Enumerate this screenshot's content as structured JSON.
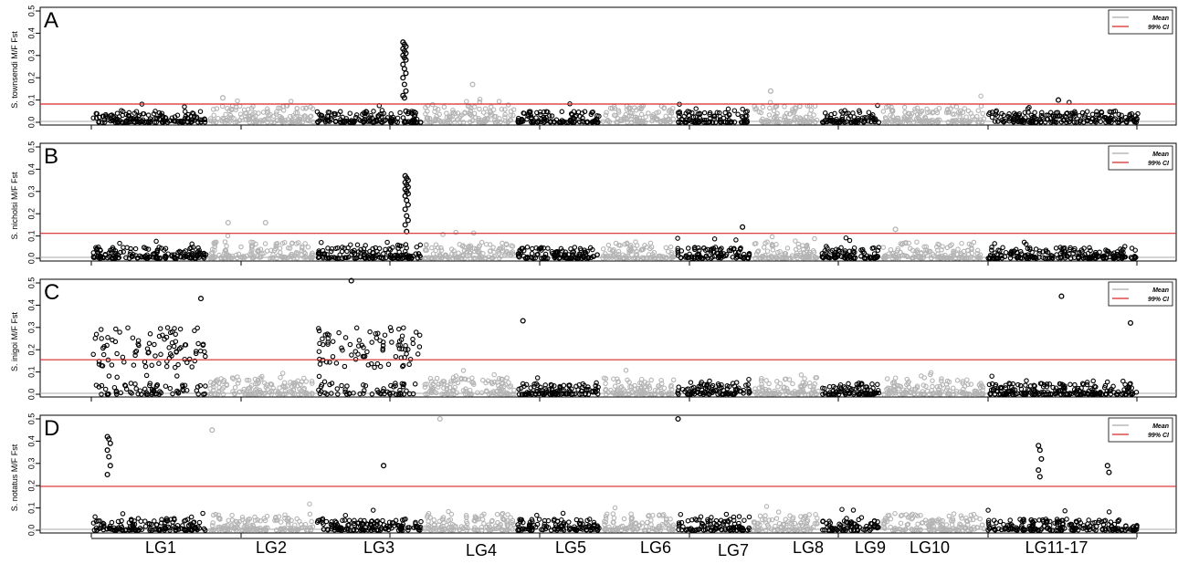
{
  "chart_data": {
    "type": "scatter",
    "x_axis": {
      "linkage_groups": [
        "LG1",
        "LG2",
        "LG3",
        "LG4",
        "LG5",
        "LG6",
        "LG7",
        "LG8",
        "LG9",
        "LG10",
        "LG11-17"
      ]
    },
    "y_ticks": [
      "0.0",
      "0.1",
      "0.2",
      "0.3",
      "0.4",
      "0.5"
    ],
    "ylim": [
      0,
      0.5
    ],
    "legend_entries": [
      "Mean",
      "99% CI"
    ],
    "colors": {
      "alternate_group_a": "#000000",
      "alternate_group_b": "#b4b4b4",
      "mean_line": "#aaaaaa",
      "ci_line": "#d62728"
    },
    "panels": [
      {
        "label": "A",
        "ylabel": "S. townsendi M/F Fst",
        "mean": 0.004,
        "ci99": 0.082,
        "highlights": [
          {
            "group": "LG3",
            "position": 0.83,
            "values": [
              0.36,
              0.35,
              0.34,
              0.33,
              0.32,
              0.31,
              0.3,
              0.29,
              0.28,
              0.26,
              0.24,
              0.22,
              0.2,
              0.17,
              0.14,
              0.12,
              0.11,
              0.05
            ]
          },
          {
            "group": "LG4",
            "position": 0.55,
            "values": [
              0.17
            ]
          },
          {
            "group": "LG8",
            "position": 0.3,
            "values": [
              0.14
            ]
          },
          {
            "group": "LG2",
            "position": 0.15,
            "values": [
              0.11
            ]
          },
          {
            "group": "LG11-17",
            "position": 0.48,
            "values": [
              0.1
            ]
          }
        ]
      },
      {
        "label": "B",
        "ylabel": "S. nicholsi M/F Fst",
        "mean": 0.004,
        "ci99": 0.112,
        "highlights": [
          {
            "group": "LG3",
            "position": 0.85,
            "values": [
              0.37,
              0.36,
              0.35,
              0.34,
              0.33,
              0.32,
              0.31,
              0.3,
              0.29,
              0.28,
              0.26,
              0.24,
              0.22,
              0.19,
              0.17,
              0.15,
              0.12
            ]
          },
          {
            "group": "LG2",
            "position": 0.2,
            "values": [
              0.16
            ]
          },
          {
            "group": "LG2",
            "position": 0.55,
            "values": [
              0.16
            ]
          },
          {
            "group": "LG7",
            "position": 0.9,
            "values": [
              0.14
            ]
          },
          {
            "group": "LG10",
            "position": 0.15,
            "values": [
              0.13
            ]
          }
        ]
      },
      {
        "label": "C",
        "ylabel": "S. inigoi M/F Fst",
        "mean": 0.004,
        "ci99": 0.155,
        "highlights": [
          {
            "group": "LG3",
            "position": 0.35,
            "values": [
              0.51
            ]
          },
          {
            "group": "LG1",
            "position": 0.95,
            "values": [
              0.43
            ]
          },
          {
            "group": "LG11-17",
            "position": 0.5,
            "values": [
              0.44
            ]
          },
          {
            "group": "LG5",
            "position": 0.1,
            "values": [
              0.33
            ]
          },
          {
            "group": "LG11-17",
            "position": 0.95,
            "values": [
              0.32
            ]
          }
        ]
      },
      {
        "label": "D",
        "ylabel": "S. notatus M/F Fst",
        "mean": 0.004,
        "ci99": 0.197,
        "highlights": [
          {
            "group": "LG1",
            "position": 0.15,
            "values": [
              0.42,
              0.41,
              0.39,
              0.36,
              0.33,
              0.29,
              0.25
            ]
          },
          {
            "group": "LG7",
            "position": 0.05,
            "values": [
              0.5
            ]
          },
          {
            "group": "LG4",
            "position": 0.2,
            "values": [
              0.5
            ]
          },
          {
            "group": "LG2",
            "position": 0.05,
            "values": [
              0.45
            ]
          },
          {
            "group": "LG11-17",
            "position": 0.35,
            "values": [
              0.38,
              0.36,
              0.32,
              0.27,
              0.24
            ]
          },
          {
            "group": "LG3",
            "position": 0.65,
            "values": [
              0.29
            ]
          },
          {
            "group": "LG11-17",
            "position": 0.8,
            "values": [
              0.29,
              0.26
            ]
          }
        ]
      }
    ]
  }
}
